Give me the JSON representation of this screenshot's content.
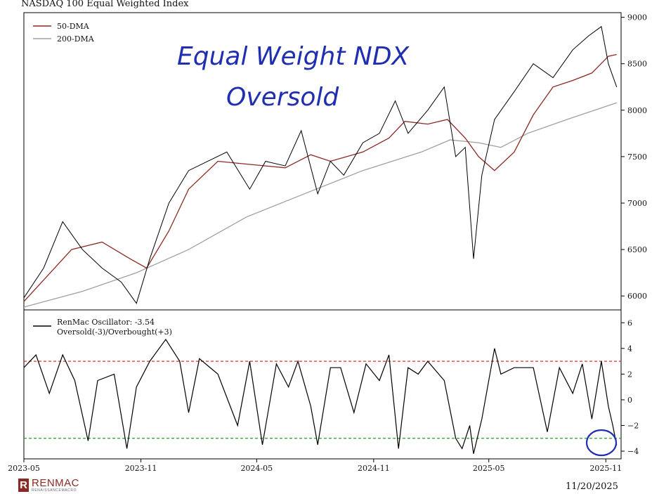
{
  "title": "NASDAQ 100 Equal Weighted Index",
  "annotations": {
    "line1": "Equal Weight NDX",
    "line2": "Oversold"
  },
  "logo": {
    "name": "RENMAC",
    "subtitle": "RENAISSANCEMACRO"
  },
  "date_stamp": "11/20/2025",
  "colors": {
    "price": "#000000",
    "ma50": "#8b2a25",
    "ma200": "#a0a0a0",
    "overbought": "#e03030",
    "oversold": "#2a9d2a",
    "annotation": "#1f2fb0"
  },
  "chart_data": [
    {
      "type": "line",
      "title": "NASDAQ 100 Equal Weighted Index",
      "x_ticks": [
        "2023-05",
        "2023-11",
        "2024-05",
        "2024-11",
        "2025-05",
        "2025-11"
      ],
      "ylim": [
        5850,
        9050
      ],
      "y_ticks": [
        "9000",
        "8500",
        "8000",
        "7500",
        "7000",
        "6500",
        "6000"
      ],
      "legend": {
        "position": "top-left",
        "entries": [
          "50-DMA",
          "200-DMA"
        ]
      },
      "series": [
        {
          "name": "NASDAQ 100 Equal Weighted Index",
          "x": [
            "2023-05-01",
            "2023-06-01",
            "2023-07-01",
            "2023-08-01",
            "2023-09-01",
            "2023-10-01",
            "2023-10-25",
            "2023-11-15",
            "2023-12-15",
            "2024-01-15",
            "2024-03-15",
            "2024-04-20",
            "2024-05-15",
            "2024-06-15",
            "2024-07-10",
            "2024-08-05",
            "2024-08-25",
            "2024-09-15",
            "2024-10-15",
            "2024-11-10",
            "2024-12-05",
            "2024-12-25",
            "2025-01-25",
            "2025-02-20",
            "2025-03-10",
            "2025-03-25",
            "2025-04-07",
            "2025-04-20",
            "2025-05-10",
            "2025-06-10",
            "2025-07-10",
            "2025-08-10",
            "2025-09-10",
            "2025-10-05",
            "2025-10-25",
            "2025-11-05",
            "2025-11-18"
          ],
          "values": [
            5980,
            6300,
            6800,
            6500,
            6300,
            6150,
            5920,
            6400,
            7000,
            7350,
            7550,
            7150,
            7450,
            7400,
            7780,
            7100,
            7450,
            7300,
            7650,
            7750,
            8100,
            7750,
            8000,
            8250,
            7500,
            7600,
            6400,
            7300,
            7900,
            8200,
            8500,
            8350,
            8650,
            8800,
            8900,
            8500,
            8250
          ]
        },
        {
          "name": "50-DMA",
          "x": [
            "2023-05-01",
            "2023-07-15",
            "2023-09-01",
            "2023-10-15",
            "2023-11-10",
            "2023-12-15",
            "2024-01-15",
            "2024-03-01",
            "2024-04-15",
            "2024-06-15",
            "2024-07-25",
            "2024-08-25",
            "2024-10-15",
            "2024-11-25",
            "2024-12-20",
            "2025-01-25",
            "2025-02-25",
            "2025-03-25",
            "2025-04-15",
            "2025-05-10",
            "2025-06-10",
            "2025-07-10",
            "2025-08-10",
            "2025-09-10",
            "2025-10-10",
            "2025-11-05",
            "2025-11-18"
          ],
          "values": [
            5940,
            6500,
            6580,
            6400,
            6300,
            6700,
            7150,
            7450,
            7420,
            7380,
            7520,
            7450,
            7550,
            7700,
            7880,
            7850,
            7900,
            7700,
            7500,
            7350,
            7550,
            7950,
            8250,
            8320,
            8400,
            8580,
            8600
          ]
        },
        {
          "name": "200-DMA",
          "x": [
            "2023-05-01",
            "2023-08-01",
            "2023-10-25",
            "2024-01-15",
            "2024-04-15",
            "2024-07-15",
            "2024-10-15",
            "2025-01-15",
            "2025-03-01",
            "2025-04-15",
            "2025-05-20",
            "2025-07-01",
            "2025-09-01",
            "2025-11-18"
          ],
          "values": [
            5880,
            6050,
            6250,
            6500,
            6850,
            7100,
            7350,
            7550,
            7680,
            7650,
            7600,
            7750,
            7900,
            8080
          ]
        }
      ]
    },
    {
      "type": "line",
      "x_ticks": [
        "2023-05",
        "2023-11",
        "2024-05",
        "2024-11",
        "2025-05",
        "2025-11"
      ],
      "ylim": [
        -4.6,
        7.0
      ],
      "y_ticks": [
        "6",
        "4",
        "2",
        "0",
        "−2",
        "−4"
      ],
      "reference_lines": [
        {
          "label": "overbought",
          "value": 3
        },
        {
          "label": "oversold",
          "value": -3
        }
      ],
      "legend": {
        "position": "top-left",
        "entries": [
          "RenMac Oscillator: -3.54",
          "Oversold(-3)/Overbought(+3)"
        ]
      },
      "series": [
        {
          "name": "RenMac Oscillator",
          "x": [
            "2023-05-01",
            "2023-05-20",
            "2023-06-10",
            "2023-07-01",
            "2023-07-20",
            "2023-08-10",
            "2023-08-25",
            "2023-09-20",
            "2023-10-10",
            "2023-10-25",
            "2023-11-15",
            "2023-12-10",
            "2024-01-01",
            "2024-01-15",
            "2024-02-01",
            "2024-03-01",
            "2024-04-01",
            "2024-04-20",
            "2024-05-10",
            "2024-06-01",
            "2024-06-20",
            "2024-07-05",
            "2024-07-25",
            "2024-08-05",
            "2024-08-25",
            "2024-09-10",
            "2024-10-01",
            "2024-10-20",
            "2024-11-10",
            "2024-11-25",
            "2024-12-10",
            "2024-12-25",
            "2025-01-10",
            "2025-01-25",
            "2025-02-20",
            "2025-03-10",
            "2025-03-20",
            "2025-04-01",
            "2025-04-07",
            "2025-04-20",
            "2025-05-10",
            "2025-05-20",
            "2025-06-10",
            "2025-07-10",
            "2025-08-01",
            "2025-08-20",
            "2025-09-10",
            "2025-09-25",
            "2025-10-10",
            "2025-10-25",
            "2025-11-05",
            "2025-11-12",
            "2025-11-18"
          ],
          "values": [
            2.5,
            3.5,
            0.5,
            3.5,
            1.5,
            -3.2,
            1.5,
            2.0,
            -3.8,
            1.0,
            3.0,
            4.7,
            3.0,
            -1.0,
            3.2,
            2.0,
            -2.0,
            3.0,
            -3.5,
            2.8,
            1.0,
            3.0,
            -0.5,
            -3.5,
            2.5,
            2.5,
            -1.0,
            2.8,
            1.5,
            3.5,
            -3.8,
            2.5,
            2.0,
            3.0,
            1.5,
            -3.0,
            -3.8,
            -2.0,
            -4.2,
            -1.5,
            4.0,
            2.0,
            2.5,
            2.5,
            -2.5,
            2.5,
            0.5,
            2.8,
            -1.5,
            3.0,
            -0.5,
            -2.0,
            -3.54
          ]
        }
      ]
    }
  ]
}
